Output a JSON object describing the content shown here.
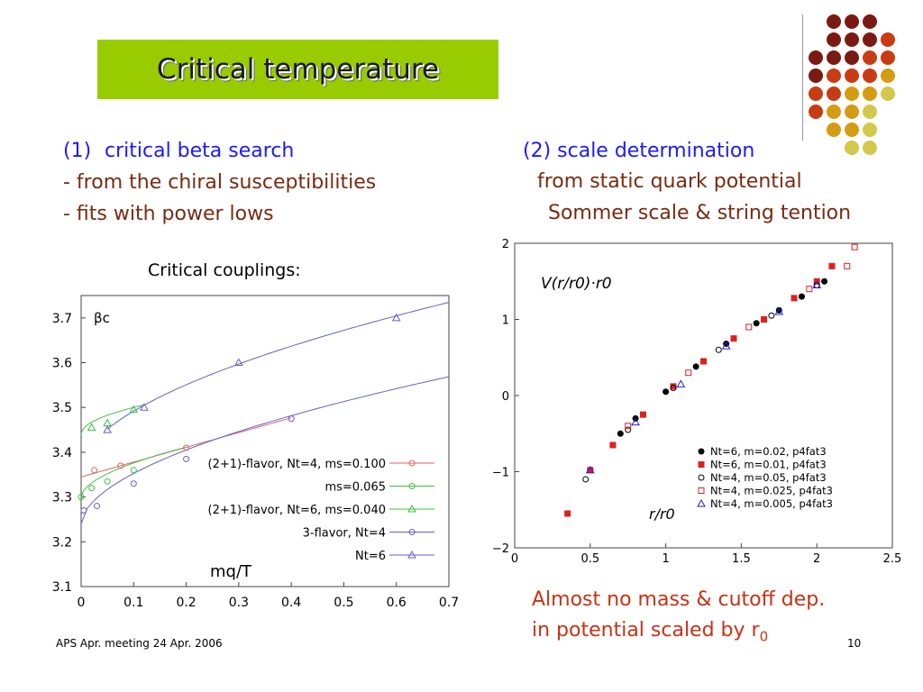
{
  "slide": {
    "title": "Critical temperature",
    "left_heading_num": "(1)",
    "left_heading": "critical beta search",
    "left_line1": "- from the chiral susceptibilities",
    "left_line2": "- fits with power lows",
    "right_heading": "(2) scale determination",
    "right_line1": "from static quark potential",
    "right_line2": "Sommer scale & string tention",
    "chart_caption": "Critical couplings:",
    "conclusion_line1": "Almost no mass & cutoff dep.",
    "conclusion_line2": "in potential scaled by r",
    "conclusion_sub": "0",
    "footer": "APS Apr. meeting 24 Apr. 2006",
    "page_number": "10"
  },
  "decoration": {
    "colors": [
      "#7b1a12",
      "#c83c14",
      "#d39c14",
      "#d2c84c"
    ]
  },
  "chart_data": [
    {
      "type": "scatter",
      "title": "",
      "ylabel": "βc",
      "xlabel": "mq/T",
      "xlim": [
        0,
        0.7
      ],
      "ylim": [
        3.1,
        3.75
      ],
      "xticks": [
        "0",
        "0.1",
        "0.2",
        "0.3",
        "0.4",
        "0.5",
        "0.6",
        "0.7"
      ],
      "yticks": [
        "3.1",
        "3.2",
        "3.3",
        "3.4",
        "3.5",
        "3.6",
        "3.7"
      ],
      "grid": false,
      "legend_position": "bottom-right",
      "series": [
        {
          "name": "(2+1)-flavor, Nt=4, ms=0.100",
          "color": "#e06060",
          "marker": "circle",
          "x": [
            0.025,
            0.075,
            0.2
          ],
          "y": [
            3.36,
            3.37,
            3.41
          ]
        },
        {
          "name": "ms=0.065",
          "color": "#40c040",
          "marker": "circle",
          "x": [
            0.0,
            0.02,
            0.05,
            0.1
          ],
          "y": [
            3.3,
            3.32,
            3.335,
            3.36
          ]
        },
        {
          "name": "(2+1)-flavor, Nt=6, ms=0.040",
          "color": "#40c040",
          "marker": "triangle",
          "x": [
            0.02,
            0.05,
            0.1
          ],
          "y": [
            3.455,
            3.465,
            3.495
          ]
        },
        {
          "name": "3-flavor, Nt=4",
          "color": "#6060d0",
          "marker": "circle",
          "x": [
            0.005,
            0.03,
            0.1,
            0.2,
            0.4
          ],
          "y": [
            3.27,
            3.28,
            3.33,
            3.385,
            3.475
          ]
        },
        {
          "name": "Nt=6",
          "color": "#6060d0",
          "marker": "triangle",
          "x": [
            0.05,
            0.12,
            0.3,
            0.6
          ],
          "y": [
            3.45,
            3.5,
            3.6,
            3.7
          ]
        }
      ]
    },
    {
      "type": "scatter",
      "title": "",
      "ylabel": "V(r/r0)·r0",
      "xlabel": "r/r0",
      "xlim": [
        0,
        2.5
      ],
      "ylim": [
        -2,
        2
      ],
      "xticks": [
        "0",
        "0.5",
        "1",
        "1.5",
        "2",
        "2.5"
      ],
      "yticks": [
        "−2",
        "−1",
        "0",
        "1",
        "2"
      ],
      "grid": false,
      "legend_position": "bottom-right",
      "series": [
        {
          "name": "Nt=6, m=0.02, p4fat3",
          "color": "#000000",
          "marker": "filled-circle",
          "x": [
            0.5,
            0.7,
            0.8,
            1.0,
            1.2,
            1.4,
            1.6,
            1.75,
            1.9,
            2.05
          ],
          "y": [
            -0.98,
            -0.5,
            -0.3,
            0.05,
            0.38,
            0.68,
            0.95,
            1.12,
            1.3,
            1.5
          ]
        },
        {
          "name": "Nt=6, m=0.01, p4fat3",
          "color": "#e02020",
          "marker": "filled-square",
          "x": [
            0.35,
            0.5,
            0.65,
            0.85,
            1.05,
            1.25,
            1.45,
            1.65,
            1.85,
            2.0,
            2.1
          ],
          "y": [
            -1.55,
            -0.98,
            -0.65,
            -0.25,
            0.12,
            0.45,
            0.75,
            1.0,
            1.28,
            1.5,
            1.7
          ]
        },
        {
          "name": "Nt=4, m=0.05, p4fat3",
          "color": "#000000",
          "marker": "open-circle",
          "x": [
            0.47,
            0.75,
            1.05,
            1.35,
            1.7,
            2.0
          ],
          "y": [
            -1.1,
            -0.45,
            0.1,
            0.6,
            1.05,
            1.45
          ]
        },
        {
          "name": "Nt=4, m=0.025, p4fat3",
          "color": "#e02020",
          "marker": "open-square",
          "x": [
            0.75,
            1.15,
            1.55,
            1.95,
            2.2,
            2.25
          ],
          "y": [
            -0.4,
            0.3,
            0.9,
            1.4,
            1.7,
            1.95
          ]
        },
        {
          "name": "Nt=4, m=0.005, p4fat3",
          "color": "#2020e0",
          "marker": "open-triangle",
          "x": [
            0.5,
            0.8,
            1.1,
            1.4,
            1.75,
            2.0
          ],
          "y": [
            -0.98,
            -0.35,
            0.15,
            0.65,
            1.1,
            1.45
          ]
        }
      ]
    }
  ]
}
